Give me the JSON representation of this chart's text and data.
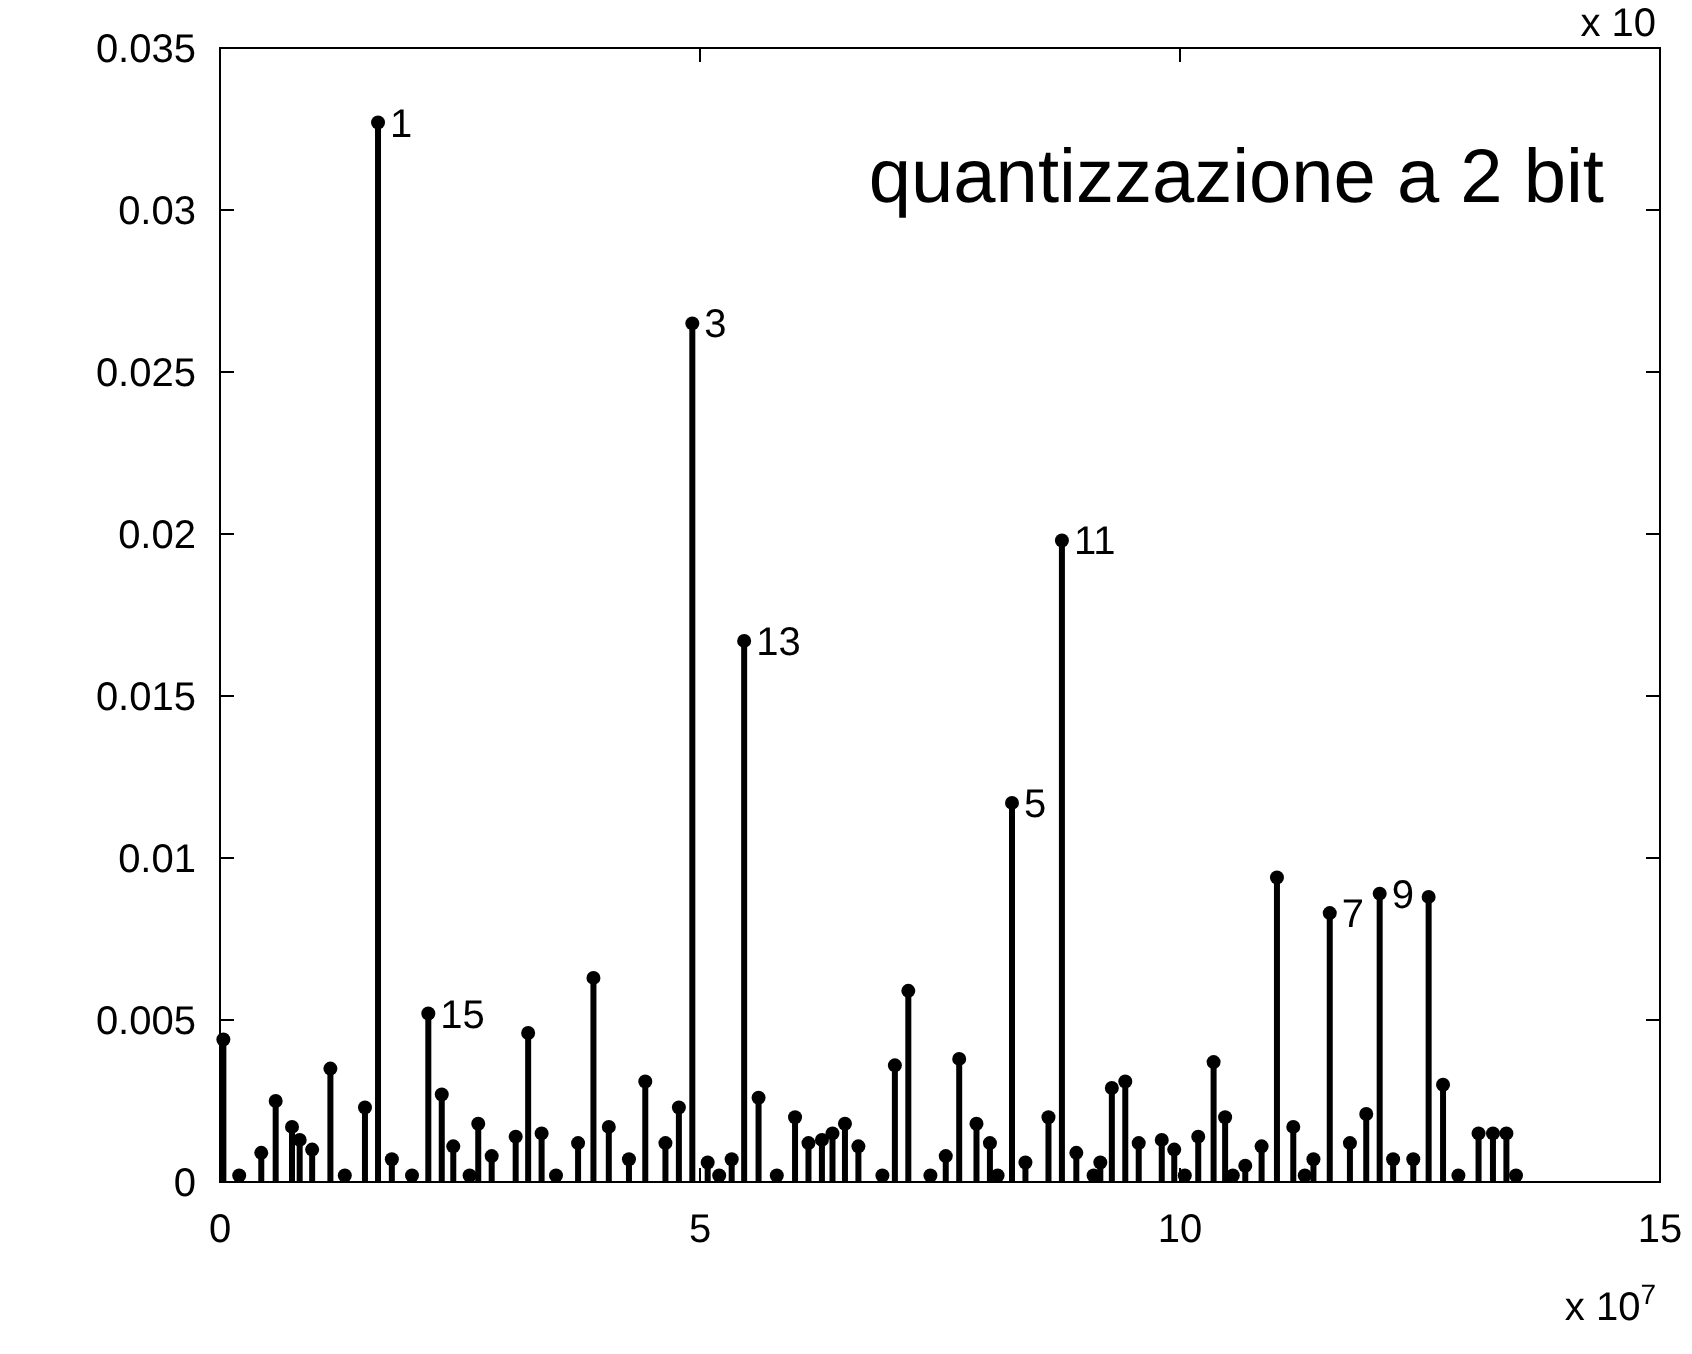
{
  "chart_data": {
    "type": "lollipop",
    "title": "quantizzazione a 2 bit",
    "x": [
      0.035,
      0.2,
      0.43,
      0.58,
      0.75,
      0.83,
      0.96,
      1.15,
      1.3,
      1.51,
      1.646,
      1.79,
      2.0,
      2.17,
      2.31,
      2.43,
      2.6,
      2.69,
      2.83,
      3.08,
      3.21,
      3.35,
      3.5,
      3.73,
      3.89,
      4.05,
      4.26,
      4.43,
      4.64,
      4.78,
      4.92,
      5.08,
      5.2,
      5.33,
      5.46,
      5.61,
      5.8,
      5.99,
      6.13,
      6.27,
      6.38,
      6.51,
      6.65,
      6.9,
      7.03,
      7.17,
      7.4,
      7.56,
      7.7,
      7.88,
      8.02,
      8.1,
      8.25,
      8.39,
      8.63,
      8.77,
      8.92,
      9.1,
      9.17,
      9.29,
      9.43,
      9.57,
      9.81,
      9.94,
      10.05,
      10.19,
      10.35,
      10.47,
      10.55,
      10.68,
      10.85,
      11.01,
      11.18,
      11.3,
      11.39,
      11.56,
      11.77,
      11.94,
      12.08,
      12.22,
      12.43,
      12.59,
      12.74,
      12.9,
      13.11,
      13.26,
      13.4,
      13.5
    ],
    "values": [
      0.0044,
      0.0002,
      0.0009,
      0.0025,
      0.0017,
      0.0013,
      0.001,
      0.0035,
      0.0002,
      0.0023,
      0.0327,
      0.0007,
      0.0002,
      0.0052,
      0.0027,
      0.0011,
      0.0002,
      0.0018,
      0.0008,
      0.0014,
      0.0046,
      0.0015,
      0.0002,
      0.0012,
      0.0063,
      0.0017,
      0.0007,
      0.0031,
      0.0012,
      0.0023,
      0.0265,
      0.0006,
      0.0002,
      0.0007,
      0.0167,
      0.0026,
      0.0002,
      0.002,
      0.0012,
      0.0013,
      0.0015,
      0.0018,
      0.0011,
      0.0002,
      0.0036,
      0.0059,
      0.0002,
      0.0008,
      0.0038,
      0.0018,
      0.0012,
      0.0002,
      0.0117,
      0.0006,
      0.002,
      0.0198,
      0.0009,
      0.0002,
      0.0006,
      0.0029,
      0.0031,
      0.0012,
      0.0013,
      0.001,
      0.0002,
      0.0014,
      0.0037,
      0.002,
      0.0002,
      0.0005,
      0.0011,
      0.0094,
      0.0017,
      0.0002,
      0.0007,
      0.0083,
      0.0012,
      0.0021,
      0.0089,
      0.0007,
      0.0007,
      0.0088,
      0.003,
      0.0002,
      0.0015,
      0.0015,
      0.0015,
      0.0002
    ],
    "color": "#000000",
    "marker": "circle",
    "xlim": [
      0,
      15
    ],
    "xticks": [
      0,
      5,
      10,
      15
    ],
    "ylim": [
      0,
      0.035
    ],
    "yticks": [
      0,
      0.005,
      0.01,
      0.015,
      0.02,
      0.025,
      0.03,
      0.035
    ],
    "grid": false,
    "annotations": [
      "x 10$^{7}$",
      "x 10",
      {
        "text": "1",
        "x": 1.646,
        "y": 0.0327
      },
      {
        "text": "3",
        "x": 4.92,
        "y": 0.0265
      },
      {
        "text": "13",
        "x": 5.46,
        "y": 0.0167
      },
      {
        "text": "11",
        "x": 8.77,
        "y": 0.0198
      },
      {
        "text": "5",
        "x": 8.25,
        "y": 0.0117
      },
      {
        "text": "15",
        "x": 2.17,
        "y": 0.0052
      },
      {
        "text": "7",
        "x": 11.56,
        "y": 0.0083
      },
      {
        "text": "9",
        "x": 12.08,
        "y": 0.0089
      }
    ]
  }
}
